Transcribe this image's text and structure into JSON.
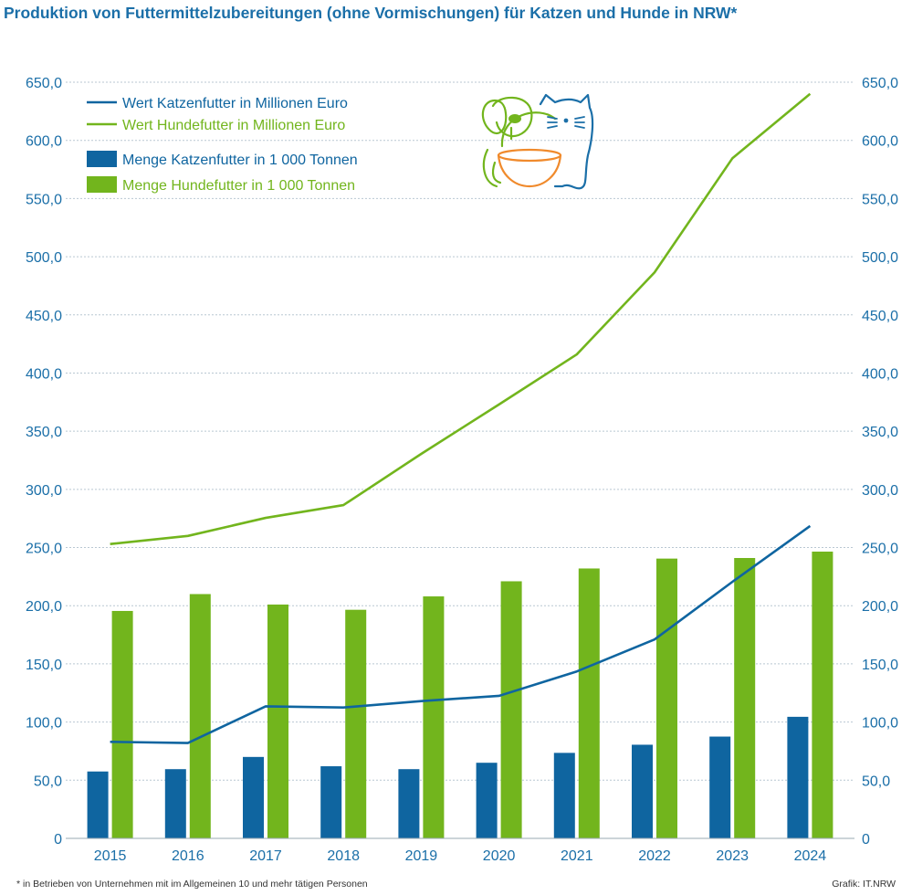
{
  "title": "Produktion von Futtermittelzubereitungen (ohne Vormischungen) für Katzen und Hunde in NRW*",
  "footnote": "* in Betrieben von Unternehmen mit im Allgemeinen 10  und mehr tätigen Personen",
  "credit": "Grafik: IT.NRW",
  "icon": "dog-and-cat-with-bowl-icon",
  "colors": {
    "cat": "#0f65a0",
    "dog": "#72b51d",
    "axis_text": "#1b6fa8",
    "grid": "#b9c7d2",
    "bowl": "#f08a2c"
  },
  "chart_data": {
    "type": "bar+line",
    "categories": [
      "2015",
      "2016",
      "2017",
      "2018",
      "2019",
      "2020",
      "2021",
      "2022",
      "2023",
      "2024"
    ],
    "bars": [
      {
        "name": "Menge Katzenfutter in 1 000 Tonnen",
        "color": "#0f65a0",
        "values": [
          57.5,
          59.5,
          70.0,
          62.0,
          59.5,
          65.0,
          73.5,
          80.5,
          87.5,
          104.5
        ]
      },
      {
        "name": "Menge Hundefutter in 1 000 Tonnen",
        "color": "#72b51d",
        "values": [
          195.5,
          210.0,
          201.0,
          196.5,
          208.0,
          221.0,
          232.0,
          240.5,
          241.0,
          246.5
        ]
      }
    ],
    "lines": [
      {
        "name": "Wert Katzenfutter in Millionen Euro",
        "color": "#0f65a0",
        "values": [
          83.0,
          82.0,
          113.5,
          112.5,
          118.0,
          122.5,
          143.5,
          171.0,
          220.5,
          268.5
        ]
      },
      {
        "name": "Wert Hundefutter in Millionen Euro",
        "color": "#72b51d",
        "values": [
          253.0,
          260.0,
          275.5,
          286.5,
          330.5,
          373.0,
          416.0,
          486.5,
          584.5,
          640.0
        ]
      }
    ],
    "ylim": [
      0,
      650
    ],
    "yticks": [
      "0",
      "50,0",
      "100,0",
      "150,0",
      "200,0",
      "250,0",
      "300,0",
      "350,0",
      "400,0",
      "450,0",
      "500,0",
      "550,0",
      "600,0",
      "650,0"
    ],
    "grid": true,
    "dual_axis_labels": true,
    "legend_position": "top-left"
  }
}
